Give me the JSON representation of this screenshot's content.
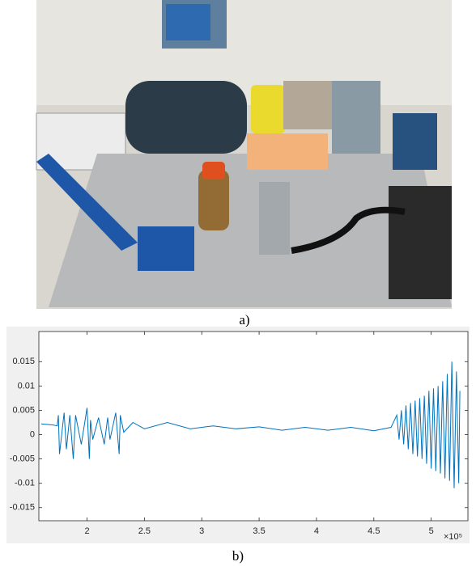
{
  "captions": [
    "a)",
    "b)"
  ],
  "chart_data": {
    "type": "line",
    "x_multiplier": "×10⁵",
    "x": [
      1.6,
      1.65,
      1.7,
      1.74,
      1.75,
      1.76,
      1.8,
      1.82,
      1.85,
      1.88,
      1.9,
      1.95,
      2.0,
      2.02,
      2.03,
      2.05,
      2.1,
      2.15,
      2.18,
      2.2,
      2.25,
      2.28,
      2.29,
      2.32,
      2.4,
      2.5,
      2.7,
      2.9,
      3.1,
      3.3,
      3.5,
      3.7,
      3.9,
      4.1,
      4.3,
      4.5,
      4.65,
      4.7,
      4.72,
      4.74,
      4.76,
      4.78,
      4.8,
      4.82,
      4.84,
      4.86,
      4.88,
      4.9,
      4.92,
      4.94,
      4.96,
      4.98,
      5.0,
      5.02,
      5.04,
      5.06,
      5.08,
      5.1,
      5.12,
      5.14,
      5.16,
      5.18,
      5.2,
      5.22,
      5.24,
      5.25
    ],
    "values": [
      0.0022,
      0.0021,
      0.002,
      0.0018,
      0.004,
      -0.004,
      0.0045,
      -0.003,
      0.004,
      -0.005,
      0.004,
      -0.002,
      0.0055,
      -0.005,
      0.003,
      -0.001,
      0.0035,
      -0.002,
      0.0035,
      -0.001,
      0.0045,
      -0.004,
      0.004,
      0.0005,
      0.0025,
      0.0012,
      0.0025,
      0.0012,
      0.0018,
      0.0012,
      0.0016,
      0.0009,
      0.0015,
      0.0009,
      0.0015,
      0.0008,
      0.0015,
      0.004,
      -0.001,
      0.005,
      -0.002,
      0.006,
      -0.003,
      0.0065,
      -0.004,
      0.007,
      -0.0045,
      0.0075,
      -0.005,
      0.008,
      -0.006,
      0.009,
      -0.007,
      0.0095,
      -0.0075,
      0.01,
      -0.008,
      0.011,
      -0.009,
      0.0125,
      -0.0095,
      0.015,
      -0.011,
      0.013,
      -0.01,
      0.009
    ],
    "color": "#0072bd",
    "xlim": [
      1.58,
      5.32
    ],
    "xticks": [
      2,
      2.5,
      3,
      3.5,
      4,
      4.5,
      5
    ],
    "ylim": [
      -0.0177,
      0.0212
    ],
    "yticks": [
      -0.015,
      -0.01,
      -0.005,
      0,
      0.005,
      0.01,
      0.015
    ]
  }
}
